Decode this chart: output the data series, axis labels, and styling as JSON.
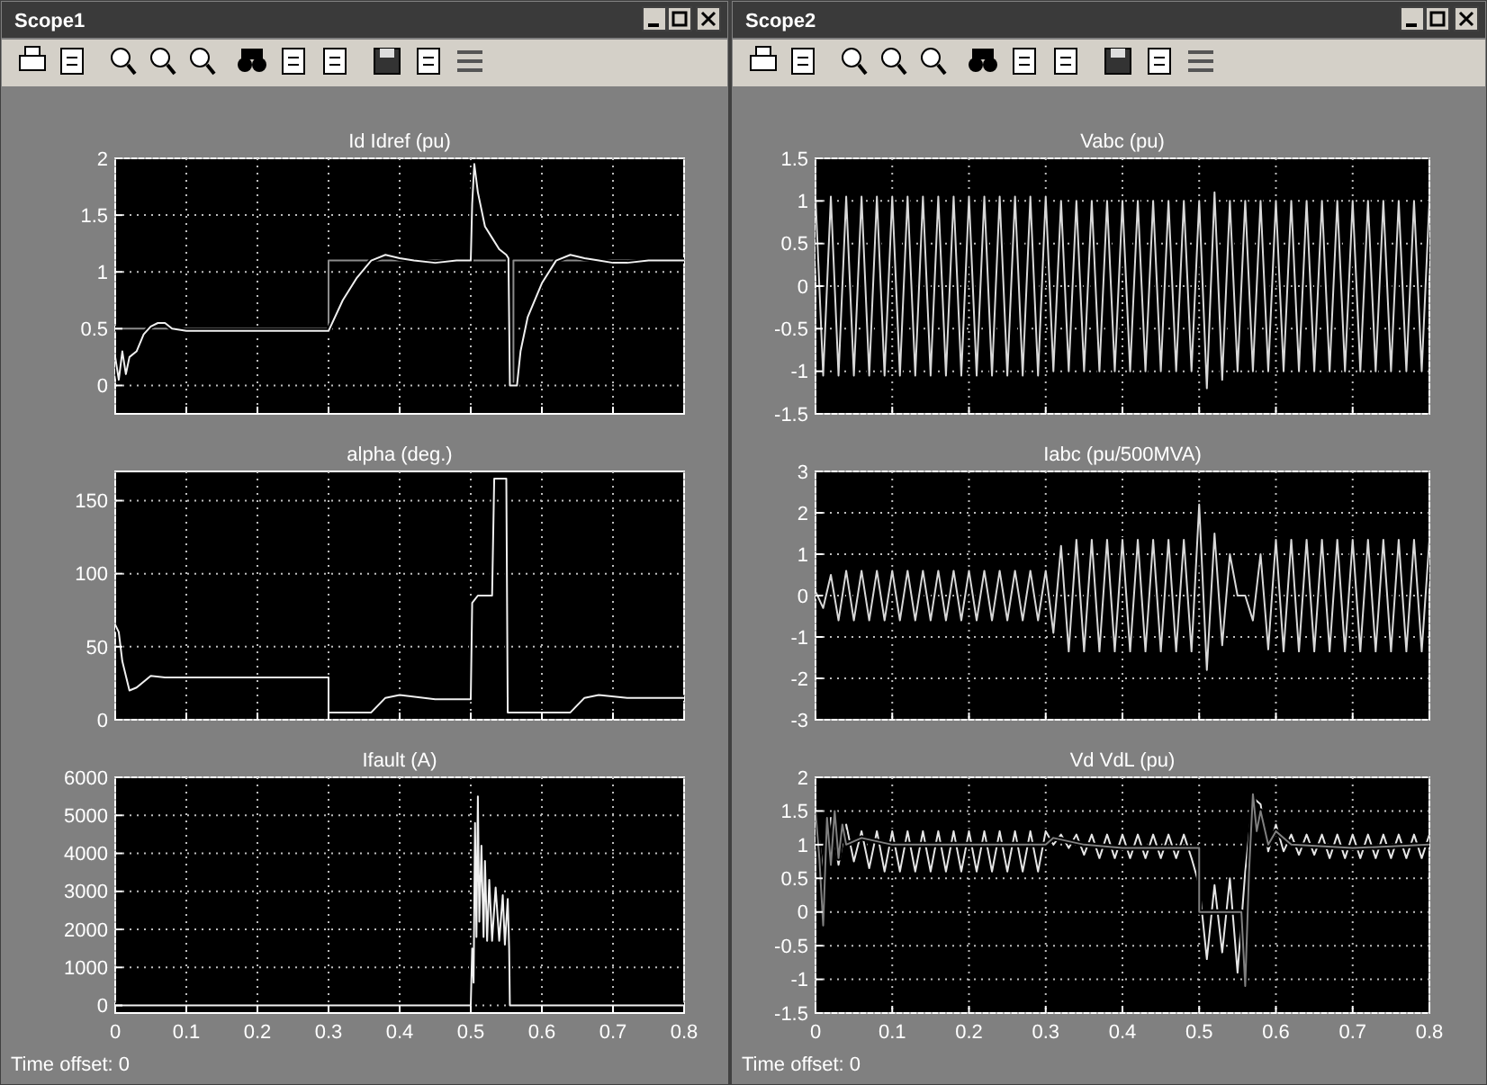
{
  "chart_data": [
    {
      "type": "line",
      "title": "Id Idref (pu)",
      "annotations": [
        "Scope1"
      ],
      "xlim": [
        0,
        0.8
      ],
      "xticks": [
        0,
        0.1,
        0.2,
        0.3,
        0.4,
        0.5,
        0.6,
        0.7,
        0.8
      ],
      "ylim": [
        -0.25,
        2
      ],
      "yticks": [
        0,
        0.5,
        1,
        1.5,
        2
      ],
      "grid": true,
      "tick_labels": "y",
      "line_style": "solid",
      "series": [
        {
          "color": "#8c8c8c",
          "x": [
            0,
            0.3,
            0.3,
            0.555,
            0.555,
            0.56,
            0.56,
            0.8
          ],
          "values": [
            0.5,
            0.5,
            1.1,
            1.1,
            0,
            0,
            1.1,
            1.1
          ]
        },
        {
          "color": "#f0f0f0",
          "x": [
            0,
            0.005,
            0.01,
            0.015,
            0.02,
            0.03,
            0.04,
            0.05,
            0.06,
            0.07,
            0.08,
            0.1,
            0.2,
            0.3,
            0.32,
            0.34,
            0.36,
            0.38,
            0.4,
            0.42,
            0.45,
            0.48,
            0.5,
            0.502,
            0.505,
            0.51,
            0.52,
            0.53,
            0.54,
            0.55,
            0.553,
            0.555,
            0.565,
            0.57,
            0.58,
            0.6,
            0.62,
            0.64,
            0.66,
            0.68,
            0.7,
            0.72,
            0.75,
            0.8
          ],
          "values": [
            0.25,
            0.05,
            0.3,
            0.1,
            0.25,
            0.3,
            0.45,
            0.52,
            0.55,
            0.55,
            0.5,
            0.48,
            0.48,
            0.48,
            0.75,
            0.95,
            1.1,
            1.15,
            1.12,
            1.1,
            1.08,
            1.1,
            1.1,
            1.6,
            1.95,
            1.7,
            1.4,
            1.3,
            1.2,
            1.15,
            1.12,
            0,
            0,
            0.3,
            0.6,
            0.9,
            1.1,
            1.15,
            1.12,
            1.1,
            1.08,
            1.08,
            1.1,
            1.1
          ]
        }
      ]
    },
    {
      "type": "line",
      "title": "alpha (deg.)",
      "xlim": [
        0,
        0.8
      ],
      "xticks": [
        0,
        0.1,
        0.2,
        0.3,
        0.4,
        0.5,
        0.6,
        0.7,
        0.8
      ],
      "ylim": [
        0,
        170
      ],
      "yticks": [
        0,
        50,
        100,
        150
      ],
      "grid": true,
      "tick_labels": "y",
      "line_style": "solid",
      "series": [
        {
          "color": "#f0f0f0",
          "x": [
            0,
            0.005,
            0.01,
            0.02,
            0.03,
            0.05,
            0.07,
            0.1,
            0.2,
            0.3,
            0.3,
            0.36,
            0.38,
            0.4,
            0.45,
            0.5,
            0.502,
            0.51,
            0.53,
            0.533,
            0.55,
            0.552,
            0.64,
            0.66,
            0.68,
            0.72,
            0.8
          ],
          "values": [
            65,
            60,
            40,
            20,
            22,
            30,
            29,
            29,
            29,
            29,
            5,
            5,
            15,
            17,
            14,
            14,
            80,
            85,
            85,
            165,
            165,
            5,
            5,
            15,
            17,
            15,
            15
          ]
        }
      ]
    },
    {
      "type": "line",
      "title": "Ifault (A)",
      "annotations": [
        "Time offset:  0"
      ],
      "xlim": [
        0,
        0.8
      ],
      "xticks": [
        0,
        0.1,
        0.2,
        0.3,
        0.4,
        0.5,
        0.6,
        0.7,
        0.8
      ],
      "ylim": [
        -200,
        6000
      ],
      "yticks": [
        0,
        1000,
        2000,
        3000,
        4000,
        5000,
        6000
      ],
      "grid": true,
      "line_style": "solid",
      "series": [
        {
          "color": "#f0f0f0",
          "x": [
            0,
            0.5,
            0.502,
            0.504,
            0.506,
            0.508,
            0.51,
            0.512,
            0.515,
            0.518,
            0.52,
            0.523,
            0.526,
            0.53,
            0.535,
            0.54,
            0.545,
            0.548,
            0.552,
            0.554,
            0.555,
            0.8
          ],
          "values": [
            0,
            0,
            1500,
            600,
            4800,
            1800,
            5500,
            2200,
            4200,
            1800,
            3800,
            1700,
            3300,
            1700,
            3100,
            1700,
            2900,
            1600,
            2800,
            1500,
            0,
            0
          ]
        }
      ]
    },
    {
      "type": "line",
      "title": "Vabc (pu)",
      "annotations": [
        "Scope2"
      ],
      "xlim": [
        0,
        0.8
      ],
      "xticks": [
        0,
        0.1,
        0.2,
        0.3,
        0.4,
        0.5,
        0.6,
        0.7,
        0.8
      ],
      "ylim": [
        -1.5,
        1.5
      ],
      "yticks": [
        -1.5,
        -1,
        -0.5,
        0,
        0.5,
        1,
        1.5
      ],
      "grid": true,
      "tick_labels": "y",
      "line_style": "solid",
      "series": [
        {
          "color": "#d8d8d8",
          "x": [
            0,
            0.01,
            0.02,
            0.03,
            0.04,
            0.05,
            0.06,
            0.07,
            0.08,
            0.09,
            0.1,
            0.11,
            0.12,
            0.13,
            0.14,
            0.15,
            0.16,
            0.17,
            0.18,
            0.19,
            0.2,
            0.21,
            0.22,
            0.23,
            0.24,
            0.25,
            0.26,
            0.27,
            0.28,
            0.29,
            0.3,
            0.31,
            0.32,
            0.33,
            0.34,
            0.35,
            0.36,
            0.37,
            0.38,
            0.39,
            0.4,
            0.41,
            0.42,
            0.43,
            0.44,
            0.45,
            0.46,
            0.47,
            0.48,
            0.49,
            0.5,
            0.51,
            0.52,
            0.53,
            0.54,
            0.55,
            0.56,
            0.57,
            0.58,
            0.59,
            0.6,
            0.61,
            0.62,
            0.63,
            0.64,
            0.65,
            0.66,
            0.67,
            0.68,
            0.69,
            0.7,
            0.71,
            0.72,
            0.73,
            0.74,
            0.75,
            0.76,
            0.77,
            0.78,
            0.79,
            0.8
          ],
          "values": [
            1.05,
            -1.05,
            1.05,
            -1.05,
            1.05,
            -1.05,
            1.05,
            -1.05,
            1.05,
            -1.05,
            1.05,
            -1.05,
            1.05,
            -1.05,
            1.05,
            -1.05,
            1.05,
            -1.05,
            1.05,
            -1.05,
            1.05,
            -1.05,
            1.05,
            -1.05,
            1.05,
            -1.05,
            1.05,
            -1.05,
            1.05,
            -1.05,
            1.05,
            -1,
            1,
            -1,
            1,
            -1,
            1,
            -1,
            1,
            -1,
            1,
            -1,
            1,
            -1,
            1,
            -1,
            1,
            -1,
            1,
            -1,
            1,
            -1.2,
            1.1,
            -1.1,
            1,
            -1,
            1,
            -1,
            1,
            -1,
            1,
            -1,
            1,
            -1,
            1,
            -1,
            1,
            -1,
            1,
            -1,
            1,
            -1,
            1,
            -1,
            1,
            -1,
            1,
            -1,
            1,
            -1,
            1
          ]
        }
      ]
    },
    {
      "type": "line",
      "title": "Iabc (pu/500MVA)",
      "xlim": [
        0,
        0.8
      ],
      "xticks": [
        0,
        0.1,
        0.2,
        0.3,
        0.4,
        0.5,
        0.6,
        0.7,
        0.8
      ],
      "ylim": [
        -3,
        3
      ],
      "yticks": [
        -3,
        -2,
        -1,
        0,
        1,
        2,
        3
      ],
      "grid": true,
      "tick_labels": "y",
      "line_style": "solid",
      "series": [
        {
          "color": "#d8d8d8",
          "x": [
            0,
            0.01,
            0.02,
            0.03,
            0.04,
            0.05,
            0.06,
            0.07,
            0.08,
            0.09,
            0.1,
            0.11,
            0.12,
            0.13,
            0.14,
            0.15,
            0.16,
            0.17,
            0.18,
            0.19,
            0.2,
            0.21,
            0.22,
            0.23,
            0.24,
            0.25,
            0.26,
            0.27,
            0.28,
            0.29,
            0.3,
            0.31,
            0.32,
            0.33,
            0.34,
            0.35,
            0.36,
            0.37,
            0.38,
            0.39,
            0.4,
            0.41,
            0.42,
            0.43,
            0.44,
            0.45,
            0.46,
            0.47,
            0.48,
            0.49,
            0.5,
            0.51,
            0.52,
            0.53,
            0.54,
            0.55,
            0.56,
            0.57,
            0.58,
            0.59,
            0.6,
            0.61,
            0.62,
            0.63,
            0.64,
            0.65,
            0.66,
            0.67,
            0.68,
            0.69,
            0.7,
            0.71,
            0.72,
            0.73,
            0.74,
            0.75,
            0.76,
            0.77,
            0.78,
            0.79,
            0.8
          ],
          "values": [
            0.1,
            -0.3,
            0.5,
            -0.6,
            0.6,
            -0.6,
            0.6,
            -0.6,
            0.6,
            -0.6,
            0.6,
            -0.6,
            0.6,
            -0.6,
            0.6,
            -0.6,
            0.6,
            -0.6,
            0.6,
            -0.6,
            0.6,
            -0.6,
            0.6,
            -0.6,
            0.6,
            -0.6,
            0.6,
            -0.6,
            0.6,
            -0.6,
            0.6,
            -0.9,
            1.2,
            -1.35,
            1.35,
            -1.35,
            1.35,
            -1.35,
            1.35,
            -1.35,
            1.35,
            -1.35,
            1.35,
            -1.35,
            1.35,
            -1.35,
            1.35,
            -1.35,
            1.35,
            -1.35,
            2.2,
            -1.8,
            1.5,
            -1.2,
            1,
            0,
            0,
            -0.6,
            1,
            -1.3,
            1.35,
            -1.35,
            1.35,
            -1.35,
            1.35,
            -1.35,
            1.35,
            -1.35,
            1.35,
            -1.35,
            1.35,
            -1.35,
            1.35,
            -1.35,
            1.35,
            -1.35,
            1.35,
            -1.35,
            1.35,
            -1.35,
            1.35
          ]
        }
      ]
    },
    {
      "type": "line",
      "title": "Vd VdL (pu)",
      "annotations": [
        "Time offset:  0"
      ],
      "xlim": [
        0,
        0.8
      ],
      "xticks": [
        0,
        0.1,
        0.2,
        0.3,
        0.4,
        0.5,
        0.6,
        0.7,
        0.8
      ],
      "ylim": [
        -1.5,
        2
      ],
      "yticks": [
        -1.5,
        -1,
        -0.5,
        0,
        0.5,
        1,
        1.5,
        2
      ],
      "grid": true,
      "line_style": "solid",
      "series": [
        {
          "color": "#e6e6e6",
          "x": [
            0,
            0.01,
            0.02,
            0.03,
            0.04,
            0.05,
            0.06,
            0.07,
            0.08,
            0.09,
            0.1,
            0.11,
            0.12,
            0.13,
            0.14,
            0.15,
            0.16,
            0.17,
            0.18,
            0.19,
            0.2,
            0.21,
            0.22,
            0.23,
            0.24,
            0.25,
            0.26,
            0.27,
            0.28,
            0.29,
            0.3,
            0.31,
            0.32,
            0.33,
            0.34,
            0.35,
            0.36,
            0.37,
            0.38,
            0.39,
            0.4,
            0.41,
            0.42,
            0.43,
            0.44,
            0.45,
            0.46,
            0.47,
            0.48,
            0.49,
            0.5,
            0.51,
            0.52,
            0.53,
            0.54,
            0.55,
            0.56,
            0.57,
            0.58,
            0.59,
            0.6,
            0.61,
            0.62,
            0.63,
            0.64,
            0.65,
            0.66,
            0.67,
            0.68,
            0.69,
            0.7,
            0.71,
            0.72,
            0.73,
            0.74,
            0.75,
            0.76,
            0.77,
            0.78,
            0.79,
            0.8
          ],
          "values": [
            1.5,
            0.6,
            1.4,
            0.7,
            1.3,
            0.75,
            1.2,
            0.65,
            1.2,
            0.6,
            1.2,
            0.6,
            1.2,
            0.6,
            1.2,
            0.6,
            1.2,
            0.6,
            1.2,
            0.6,
            1.2,
            0.6,
            1.2,
            0.6,
            1.2,
            0.6,
            1.2,
            0.6,
            1.2,
            0.6,
            1.2,
            1,
            1.15,
            0.95,
            1.15,
            0.85,
            1.15,
            0.8,
            1.15,
            0.8,
            1.15,
            0.8,
            1.15,
            0.8,
            1.15,
            0.8,
            1.15,
            0.8,
            1.15,
            0.8,
            0.4,
            -0.7,
            0.4,
            -0.6,
            0.5,
            -0.9,
            0.6,
            1.7,
            1.6,
            0.9,
            1.3,
            0.9,
            1.15,
            0.85,
            1.15,
            0.85,
            1.15,
            0.8,
            1.15,
            0.8,
            1.15,
            0.8,
            1.15,
            0.8,
            1.15,
            0.8,
            1.15,
            0.8,
            1.15,
            0.8,
            1.15
          ]
        },
        {
          "color": "#808080",
          "x": [
            0,
            0.005,
            0.01,
            0.015,
            0.02,
            0.025,
            0.03,
            0.035,
            0.04,
            0.06,
            0.1,
            0.2,
            0.3,
            0.31,
            0.35,
            0.4,
            0.5,
            0.5,
            0.555,
            0.56,
            0.565,
            0.57,
            0.575,
            0.58,
            0.59,
            0.6,
            0.62,
            0.7,
            0.8
          ],
          "values": [
            1.5,
            0.8,
            -0.2,
            1.4,
            0.7,
            1.5,
            0.8,
            1.3,
            1,
            1.1,
            1,
            1,
            1,
            1.1,
            1,
            0.95,
            0.95,
            0,
            0,
            -1.1,
            0.6,
            1.75,
            1.2,
            1.5,
            1,
            1.2,
            1,
            0.95,
            1
          ]
        }
      ]
    }
  ]
}
